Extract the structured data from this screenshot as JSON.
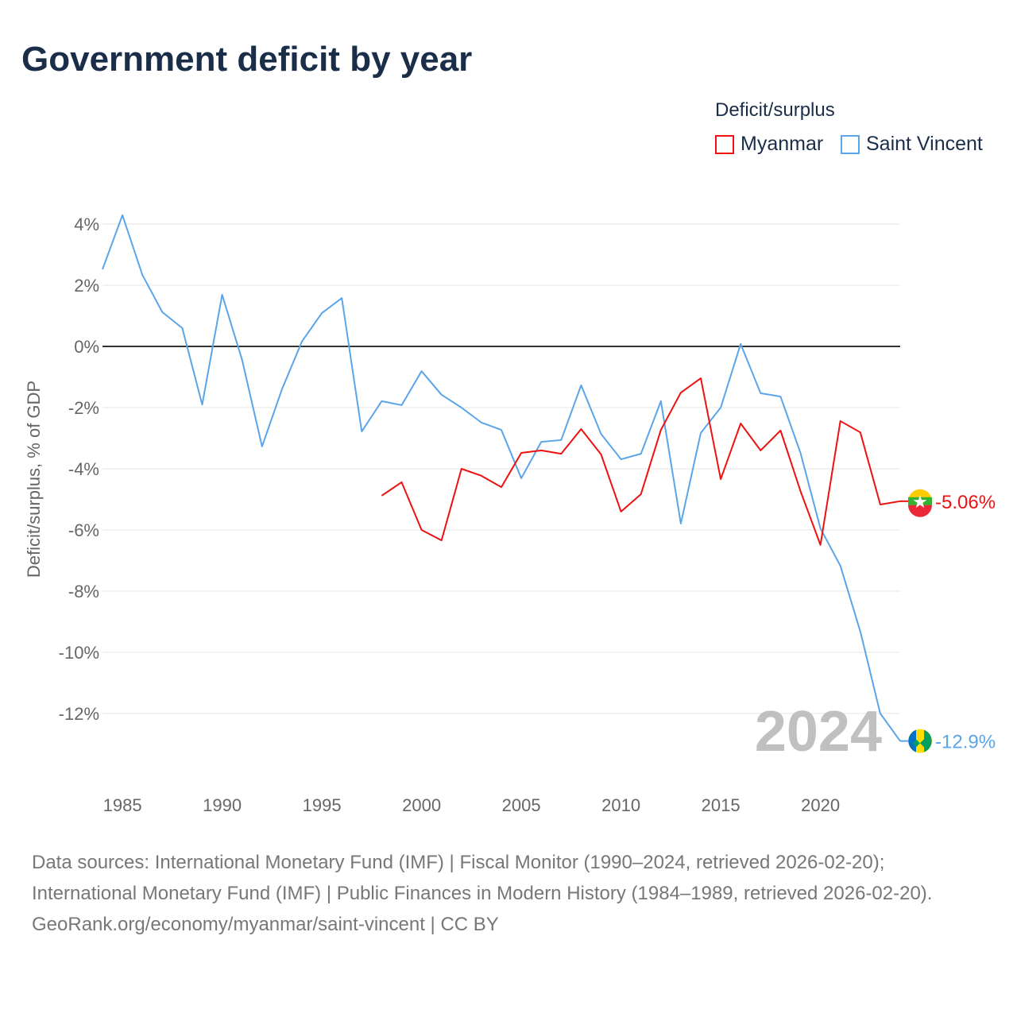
{
  "title": "Government deficit by year",
  "legend": {
    "title": "Deficit/surplus",
    "items": [
      {
        "label": "Myanmar",
        "color": "#ee1111"
      },
      {
        "label": "Saint Vincent",
        "color": "#5aa5ea"
      }
    ]
  },
  "year_watermark": "2024",
  "source": {
    "line1": "Data sources: International Monetary Fund (IMF) | Fiscal Monitor (1990–2024, retrieved 2026-02-20); International Monetary Fund (IMF) | Public Finances in Modern History (1984–1989, retrieved 2026-02-20).",
    "line2": "GeoRank.org/economy/myanmar/saint-vincent | CC BY"
  },
  "chart_data": {
    "type": "line",
    "title": "Government deficit by year",
    "xlabel": "",
    "ylabel": "Deficit/surplus, % of GDP",
    "xlim": [
      1984,
      2024
    ],
    "ylim": [
      -13,
      4.5
    ],
    "x_ticks": [
      1985,
      1990,
      1995,
      2000,
      2005,
      2010,
      2015,
      2020
    ],
    "x_tick_labels": [
      "1985",
      "1990",
      "1995",
      "2000",
      "2005",
      "2010",
      "2015",
      "2020"
    ],
    "y_ticks": [
      4,
      2,
      0,
      -2,
      -4,
      -6,
      -8,
      -10,
      -12
    ],
    "y_tick_labels": [
      "4%",
      "2%",
      "0%",
      "-2%",
      "-4%",
      "-6%",
      "-8%",
      "-10%",
      "-12%"
    ],
    "grid": "horizontal",
    "legend_position": "top-right",
    "series": [
      {
        "name": "Saint Vincent",
        "color": "#5aa5ea",
        "end_label": "-12.9%",
        "x": [
          1984,
          1985,
          1986,
          1987,
          1988,
          1989,
          1990,
          1991,
          1992,
          1993,
          1994,
          1995,
          1996,
          1997,
          1998,
          1999,
          2000,
          2001,
          2002,
          2003,
          2004,
          2005,
          2006,
          2007,
          2008,
          2009,
          2010,
          2011,
          2012,
          2013,
          2014,
          2015,
          2016,
          2017,
          2018,
          2019,
          2020,
          2021,
          2022,
          2023,
          2024
        ],
        "values": [
          2.52,
          4.29,
          2.34,
          1.12,
          0.6,
          -1.9,
          1.69,
          -0.44,
          -3.27,
          -1.4,
          0.16,
          1.09,
          1.58,
          -2.78,
          -1.79,
          -1.92,
          -0.81,
          -1.58,
          -2.0,
          -2.49,
          -2.73,
          -4.31,
          -3.12,
          -3.06,
          -1.27,
          -2.86,
          -3.69,
          -3.51,
          -1.79,
          -5.79,
          -2.83,
          -2.0,
          0.08,
          -1.53,
          -1.64,
          -3.48,
          -5.95,
          -7.17,
          -9.32,
          -12.0,
          -12.9
        ]
      },
      {
        "name": "Myanmar",
        "color": "#ee1111",
        "end_label": "-5.06%",
        "x": [
          1998,
          1999,
          2000,
          2001,
          2002,
          2003,
          2004,
          2005,
          2006,
          2007,
          2008,
          2009,
          2010,
          2011,
          2012,
          2013,
          2014,
          2015,
          2016,
          2017,
          2018,
          2019,
          2020,
          2021,
          2022,
          2023,
          2024
        ],
        "values": [
          -4.88,
          -4.44,
          -6.0,
          -6.34,
          -4.0,
          -4.23,
          -4.6,
          -3.48,
          -3.4,
          -3.51,
          -2.7,
          -3.53,
          -5.4,
          -4.83,
          -2.73,
          -1.51,
          -1.04,
          -4.34,
          -2.52,
          -3.4,
          -2.75,
          -4.73,
          -6.49,
          -2.44,
          -2.81,
          -5.17,
          -5.06
        ]
      }
    ]
  }
}
